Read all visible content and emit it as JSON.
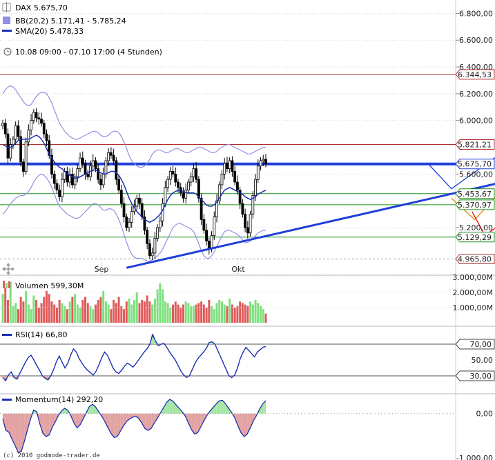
{
  "header": {
    "symbol": "DAX 5.675,70",
    "bb": "BB(20,2) 5.171,41 - 5.785,24",
    "sma": "SMA(20) 5.478,33",
    "range": "10.08 09:00 - 07.10 17:00 (4 Stunden)"
  },
  "colors": {
    "candle_up": "#1b8f1b",
    "candle_down": "#c01818",
    "bb": "#8f8fe6",
    "sma": "#1a2fb0",
    "trend": "#1f3fd8",
    "scenario_blue": "#2448e0",
    "scenario_orange": "#f08a1a",
    "scenario_red": "#e81818",
    "vol_up": "#7de07d",
    "vol_down": "#e05a5a",
    "mom_pos": "#a6e6a6",
    "mom_neg": "#e3a3a3"
  },
  "chart_data": [
    {
      "type": "candlestick",
      "title": "DAX 5.675,70",
      "y_scale": "linear",
      "ylim": [
        4850,
        6900
      ],
      "x_labels": [
        "Sep",
        "Okt"
      ],
      "y_ticks": [
        "5.200,00",
        "5.600,00",
        "6.000,00",
        "6.200,00",
        "6.400,00",
        "6.600,00",
        "6.800,00"
      ],
      "price_labels": [
        {
          "text": "6.344,53",
          "value": 6344.53,
          "color": "#b03030"
        },
        {
          "text": "5.821,21",
          "value": 5821.21,
          "color": "#b03030"
        },
        {
          "text": "5.675,70",
          "value": 5675.7,
          "color": "#1f3fd8"
        },
        {
          "text": "5.453,67",
          "value": 5453.67,
          "color": "#1a8f1a"
        },
        {
          "text": "5.370,97",
          "value": 5370.97,
          "color": "#1a8f1a"
        },
        {
          "text": "5.129,29",
          "value": 5129.29,
          "color": "#1a8f1a"
        },
        {
          "text": "4.965,80",
          "value": 4965.8,
          "color": "#b03030"
        }
      ],
      "horizontal_levels": [
        {
          "value": 6344.53,
          "color": "#b03030"
        },
        {
          "value": 5821.21,
          "color": "#b03030"
        },
        {
          "value": 5675.7,
          "color": "#1f3fd8",
          "bold": true
        },
        {
          "value": 5453.67,
          "color": "#1a8f1a"
        },
        {
          "value": 5370.97,
          "color": "#1a8f1a"
        },
        {
          "value": 5129.29,
          "color": "#1a8f1a"
        },
        {
          "value": 4965.8,
          "color": "#999999",
          "dashed": true
        }
      ],
      "closes": [
        5980,
        5900,
        5720,
        5820,
        5860,
        5960,
        5880,
        5690,
        5620,
        5840,
        5930,
        6000,
        6060,
        6020,
        6010,
        5980,
        5900,
        5850,
        5740,
        5600,
        5530,
        5480,
        5430,
        5560,
        5620,
        5540,
        5600,
        5520,
        5580,
        5640,
        5720,
        5680,
        5600,
        5580,
        5660,
        5700,
        5640,
        5560,
        5520,
        5600,
        5700,
        5760,
        5740,
        5700,
        5560,
        5480,
        5380,
        5280,
        5200,
        5240,
        5320,
        5360,
        5420,
        5380,
        5280,
        5180,
        5080,
        4990,
        5010,
        5120,
        5200,
        5250,
        5380,
        5500,
        5560,
        5620,
        5600,
        5540,
        5500,
        5460,
        5420,
        5480,
        5540,
        5580,
        5640,
        5560,
        5420,
        5260,
        5180,
        5100,
        5040,
        5140,
        5280,
        5400,
        5520,
        5600,
        5680,
        5640,
        5700,
        5620,
        5540,
        5480,
        5380,
        5300,
        5200,
        5160,
        5300,
        5440,
        5560,
        5660,
        5700,
        5710,
        5676
      ],
      "bb_upper": [
        6200,
        6230,
        6250,
        6260,
        6250,
        6230,
        6200,
        6170,
        6140,
        6120,
        6110,
        6120,
        6150,
        6180,
        6200,
        6210,
        6210,
        6200,
        6170,
        6130,
        6080,
        6030,
        5980,
        5950,
        5920,
        5900,
        5880,
        5870,
        5860,
        5860,
        5870,
        5880,
        5890,
        5900,
        5910,
        5920,
        5920,
        5910,
        5890,
        5880,
        5880,
        5890,
        5910,
        5920,
        5920,
        5910,
        5880,
        5840,
        5790,
        5740,
        5700,
        5680,
        5660,
        5650,
        5650,
        5660,
        5680,
        5710,
        5750,
        5770,
        5780,
        5780,
        5770,
        5760,
        5760,
        5770,
        5780,
        5790,
        5790,
        5780,
        5770,
        5760,
        5760,
        5770,
        5780,
        5790,
        5800,
        5800,
        5790,
        5780,
        5770,
        5760,
        5760,
        5770,
        5790,
        5800,
        5810,
        5820,
        5820,
        5810,
        5800,
        5790,
        5780,
        5770,
        5760,
        5750,
        5750,
        5760,
        5770,
        5780,
        5790,
        5800,
        5800
      ],
      "bb_lower": [
        5300,
        5320,
        5350,
        5380,
        5400,
        5420,
        5430,
        5440,
        5440,
        5450,
        5470,
        5500,
        5540,
        5570,
        5590,
        5600,
        5590,
        5570,
        5540,
        5500,
        5450,
        5400,
        5360,
        5340,
        5320,
        5300,
        5290,
        5280,
        5270,
        5270,
        5280,
        5300,
        5320,
        5340,
        5360,
        5380,
        5380,
        5370,
        5350,
        5330,
        5330,
        5340,
        5340,
        5330,
        5300,
        5260,
        5210,
        5150,
        5090,
        5040,
        5000,
        4980,
        4970,
        4970,
        4970,
        4960,
        4950,
        4950,
        4960,
        4970,
        4990,
        5010,
        5040,
        5080,
        5120,
        5160,
        5200,
        5220,
        5230,
        5230,
        5220,
        5210,
        5200,
        5190,
        5170,
        5130,
        5080,
        5030,
        4990,
        4970,
        4970,
        4990,
        5020,
        5060,
        5100,
        5140,
        5170,
        5180,
        5180,
        5170,
        5160,
        5150,
        5130,
        5110,
        5090,
        5090,
        5100,
        5120,
        5140,
        5160,
        5170,
        5180,
        5180
      ],
      "sma20": [
        5820,
        5810,
        5800,
        5800,
        5810,
        5830,
        5850,
        5860,
        5860,
        5860,
        5860,
        5870,
        5880,
        5890,
        5880,
        5860,
        5830,
        5790,
        5750,
        5720,
        5690,
        5670,
        5650,
        5640,
        5620,
        5600,
        5590,
        5580,
        5570,
        5570,
        5580,
        5590,
        5600,
        5610,
        5620,
        5630,
        5630,
        5620,
        5610,
        5600,
        5600,
        5610,
        5620,
        5620,
        5610,
        5590,
        5560,
        5520,
        5470,
        5420,
        5380,
        5350,
        5320,
        5300,
        5280,
        5260,
        5250,
        5240,
        5250,
        5260,
        5280,
        5300,
        5330,
        5370,
        5410,
        5440,
        5460,
        5470,
        5480,
        5480,
        5470,
        5460,
        5460,
        5460,
        5460,
        5450,
        5430,
        5410,
        5390,
        5370,
        5360,
        5360,
        5370,
        5390,
        5420,
        5450,
        5480,
        5490,
        5500,
        5490,
        5480,
        5470,
        5460,
        5450,
        5430,
        5420,
        5410,
        5420,
        5430,
        5450,
        5460,
        5470,
        5478
      ],
      "support_trendline": [
        {
          "x": 48,
          "y": 4900
        },
        {
          "x": 225,
          "y": 5676
        }
      ],
      "scenarios": [
        {
          "name": "",
          "color": "#2448e0",
          "points": [
            {
              "x": 165,
              "y": 5676
            },
            {
              "x": 174,
              "y": 5490
            },
            {
              "x": 198,
              "y": 5821
            },
            {
              "x": 206,
              "y": 5676
            },
            {
              "x": 223,
              "y": 6360
            }
          ]
        },
        {
          "name": "",
          "color": "#f08a1a",
          "points": [
            {
              "x": 174,
              "y": 5420
            },
            {
              "x": 183,
              "y": 5260
            },
            {
              "x": 210,
              "y": 5821
            },
            {
              "x": 218,
              "y": 5676
            },
            {
              "x": 233,
              "y": 6360
            }
          ]
        },
        {
          "name": "",
          "color": "#e81818",
          "points": [
            {
              "x": 182,
              "y": 5320
            },
            {
              "x": 187,
              "y": 5140
            },
            {
              "x": 203,
              "y": 5370
            },
            {
              "x": 224,
              "y": 4920
            }
          ]
        }
      ]
    },
    {
      "type": "bar",
      "title": "Volumen 599,30M",
      "ylim": [
        0,
        3000
      ],
      "y_ticks": [
        "1.000,00M",
        "2.000,00M",
        "3.000,00M"
      ],
      "values": [
        1900,
        2300,
        1500,
        2700,
        1100,
        1300,
        900,
        1700,
        1400,
        2100,
        1200,
        900,
        1800,
        1500,
        1000,
        1300,
        1700,
        2100,
        1900,
        1400,
        1200,
        1000,
        1500,
        1300,
        1100,
        900,
        1400,
        1700,
        1900,
        1200,
        1000,
        1500,
        1700,
        1300,
        1100,
        900,
        1200,
        1500,
        1700,
        2100,
        1400,
        1200,
        900,
        1500,
        1300,
        1700,
        1100,
        900,
        1400,
        1600,
        1200,
        1500,
        2000,
        1300,
        1500,
        1400,
        1800,
        1400,
        1200,
        1600,
        2200,
        2600,
        2200,
        1400,
        1300,
        1000,
        1200,
        1400,
        1200,
        1000,
        1200,
        1400,
        1300,
        1100,
        1100,
        1200,
        1300,
        1400,
        1200,
        1000,
        1500,
        1100,
        900,
        1300,
        1500,
        1400,
        1200,
        1100,
        1600,
        1200,
        1000,
        1100,
        1400,
        1300,
        1200,
        1100,
        1400,
        1200,
        1500,
        1300,
        1100,
        900,
        600
      ]
    },
    {
      "type": "line",
      "title": "RSI(14) 66,80",
      "ylim": [
        10,
        90
      ],
      "y_ticks": [
        "50,00"
      ],
      "levels": [
        {
          "text": "70,00",
          "value": 70
        },
        {
          "text": "30,00",
          "value": 30
        }
      ],
      "values": [
        28,
        24,
        31,
        35,
        28,
        26,
        33,
        40,
        47,
        53,
        56,
        50,
        43,
        37,
        30,
        27,
        25,
        30,
        38,
        48,
        55,
        47,
        40,
        46,
        56,
        64,
        60,
        52,
        46,
        41,
        37,
        34,
        31,
        36,
        44,
        53,
        60,
        56,
        48,
        40,
        35,
        33,
        37,
        42,
        46,
        44,
        41,
        45,
        50,
        55,
        60,
        64,
        70,
        82,
        74,
        68,
        70,
        71,
        66,
        60,
        55,
        50,
        43,
        36,
        31,
        28,
        30,
        38,
        46,
        52,
        56,
        60,
        65,
        72,
        73,
        70,
        62,
        54,
        46,
        38,
        30,
        28,
        31,
        40,
        52,
        60,
        66,
        62,
        58,
        54,
        60,
        63,
        66,
        67
      ],
      "color": "#1a2fb0"
    },
    {
      "type": "area",
      "title": "Momentum(14) 292,20",
      "ylim": [
        -1000,
        400
      ],
      "y_ticks": [
        "0,00",
        "-1.000,00"
      ],
      "values": [
        -120,
        -380,
        -420,
        -580,
        -720,
        -880,
        -850,
        -620,
        -360,
        -120,
        80,
        40,
        -240,
        -450,
        -520,
        -480,
        -310,
        -180,
        -40,
        60,
        120,
        80,
        -50,
        -210,
        -320,
        -250,
        -120,
        20,
        160,
        210,
        150,
        40,
        -60,
        -180,
        -320,
        -450,
        -540,
        -520,
        -400,
        -280,
        -180,
        -120,
        -80,
        -60,
        -110,
        -220,
        -340,
        -380,
        -330,
        -210,
        -100,
        20,
        140,
        260,
        320,
        280,
        200,
        120,
        40,
        -60,
        -210,
        -360,
        -460,
        -430,
        -300,
        -160,
        -40,
        60,
        140,
        220,
        290,
        300,
        220,
        120,
        20,
        -100,
        -280,
        -430,
        -520,
        -460,
        -320,
        -160,
        -40,
        100,
        220,
        292
      ],
      "color": "#1a2fb0"
    }
  ],
  "footer": {
    "copyright": "(c) 2010 godmode-trader.de"
  }
}
